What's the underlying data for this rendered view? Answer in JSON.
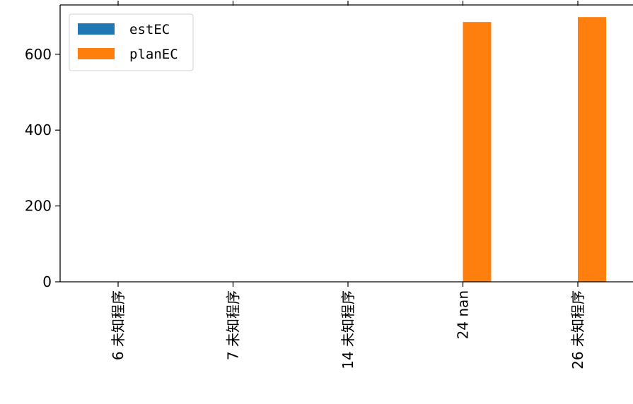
{
  "chart_data": {
    "type": "bar",
    "categories": [
      "6 未知程序",
      "7 未知程序",
      "14 未知程序",
      "24 nan",
      "26 未知程序"
    ],
    "series": [
      {
        "name": "estEC",
        "values": [
          0,
          0,
          0,
          0,
          0
        ],
        "color": "#1f77b4"
      },
      {
        "name": "planEC",
        "values": [
          0,
          0,
          0,
          685,
          698
        ],
        "color": "#ff7f0e"
      }
    ],
    "y_ticks": [
      0,
      200,
      400,
      600
    ],
    "ylim": [
      0,
      730
    ],
    "legend_position": "top-left",
    "grid": false
  }
}
